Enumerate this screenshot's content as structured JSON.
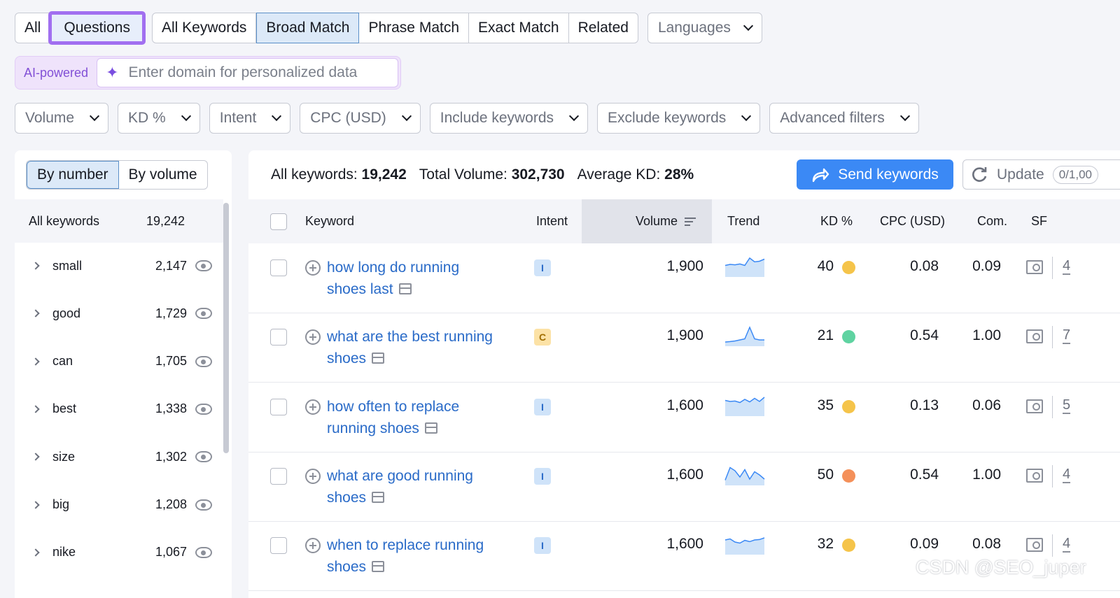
{
  "tabs_a": [
    "All",
    "Questions"
  ],
  "tabs_b": [
    "All Keywords",
    "Broad Match",
    "Phrase Match",
    "Exact Match",
    "Related"
  ],
  "languages_label": "Languages",
  "ai": {
    "label": "AI-powered",
    "placeholder": "Enter domain for personalized data"
  },
  "filters": [
    "Volume",
    "KD %",
    "Intent",
    "CPC (USD)",
    "Include keywords",
    "Exclude keywords",
    "Advanced filters"
  ],
  "left": {
    "toggle": [
      "By number",
      "By volume"
    ],
    "header": {
      "label": "All keywords",
      "count": "19,242"
    },
    "items": [
      {
        "word": "small",
        "count": "2,147"
      },
      {
        "word": "good",
        "count": "1,729"
      },
      {
        "word": "can",
        "count": "1,705"
      },
      {
        "word": "best",
        "count": "1,338"
      },
      {
        "word": "size",
        "count": "1,302"
      },
      {
        "word": "big",
        "count": "1,208"
      },
      {
        "word": "nike",
        "count": "1,067"
      }
    ]
  },
  "stats": {
    "all_label": "All keywords:",
    "all_value": "19,242",
    "vol_label": "Total Volume:",
    "vol_value": "302,730",
    "kd_label": "Average KD:",
    "kd_value": "28%"
  },
  "send_label": "Send keywords",
  "update": {
    "label": "Update",
    "pill": "0/1,00"
  },
  "columns": {
    "keyword": "Keyword",
    "intent": "Intent",
    "volume": "Volume",
    "trend": "Trend",
    "kd": "KD %",
    "cpc": "CPC (USD)",
    "com": "Com.",
    "sf": "SF"
  },
  "colors": {
    "kd_easy": "#5fd3a1",
    "kd_medium": "#f5c44a",
    "kd_hard": "#f4905a",
    "accent": "#3b89f5",
    "highlight": "#a16ff0"
  },
  "rows": [
    {
      "line1": "how long do running",
      "line2": "shoes last",
      "intent": "I",
      "volume": "1,900",
      "kd": "40",
      "kd_color": "#f5c44a",
      "cpc": "0.08",
      "com": "0.09",
      "sf": "4",
      "trend": [
        0.55,
        0.6,
        0.58,
        0.62,
        0.55,
        0.9,
        0.72,
        0.75,
        0.85
      ]
    },
    {
      "line1": "what are the best running",
      "line2": "shoes",
      "intent": "C",
      "volume": "1,900",
      "kd": "21",
      "kd_color": "#5fd3a1",
      "cpc": "0.54",
      "com": "1.00",
      "sf": "7",
      "trend": [
        0.2,
        0.22,
        0.25,
        0.3,
        0.35,
        0.9,
        0.35,
        0.3,
        0.3
      ]
    },
    {
      "line1": "how often to replace",
      "line2": "running shoes",
      "intent": "I",
      "volume": "1,600",
      "kd": "35",
      "kd_color": "#f5c44a",
      "cpc": "0.13",
      "com": "0.06",
      "sf": "5",
      "trend": [
        0.75,
        0.7,
        0.72,
        0.65,
        0.8,
        0.68,
        0.85,
        0.7,
        0.9
      ]
    },
    {
      "line1": "what are good running",
      "line2": "shoes",
      "intent": "I",
      "volume": "1,600",
      "kd": "50",
      "kd_color": "#f4905a",
      "cpc": "0.54",
      "com": "1.00",
      "sf": "4",
      "trend": [
        0.25,
        0.85,
        0.7,
        0.4,
        0.75,
        0.3,
        0.65,
        0.5,
        0.3
      ]
    },
    {
      "line1": "when to replace running",
      "line2": "shoes",
      "intent": "I",
      "volume": "1,600",
      "kd": "32",
      "kd_color": "#f5c44a",
      "cpc": "0.09",
      "com": "0.08",
      "sf": "4",
      "trend": [
        0.7,
        0.75,
        0.6,
        0.55,
        0.68,
        0.62,
        0.7,
        0.72,
        0.8
      ]
    }
  ],
  "watermark": "CSDN @SEO_juper"
}
